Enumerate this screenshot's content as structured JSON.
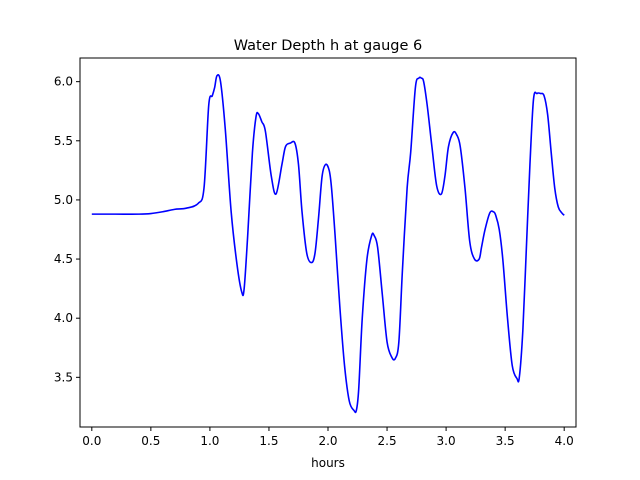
{
  "chart_data": {
    "type": "line",
    "title": "Water Depth h at gauge 6",
    "xlabel": "hours",
    "ylabel": "",
    "xlim": [
      -0.1,
      4.1
    ],
    "ylim": [
      3.08,
      6.2
    ],
    "grid": false,
    "legend": "none",
    "xticks": [
      0.0,
      0.5,
      1.0,
      1.5,
      2.0,
      2.5,
      3.0,
      3.5,
      4.0
    ],
    "xtick_labels": [
      "0.0",
      "0.5",
      "1.0",
      "1.5",
      "2.0",
      "2.5",
      "3.0",
      "3.5",
      "4.0"
    ],
    "yticks": [
      3.5,
      4.0,
      4.5,
      5.0,
      5.5,
      6.0
    ],
    "ytick_labels": [
      "3.5",
      "4.0",
      "4.5",
      "5.0",
      "5.5",
      "6.0"
    ],
    "series": [
      {
        "color": "#0000ff",
        "x": [
          0.0,
          0.2,
          0.4,
          0.5,
          0.6,
          0.7,
          0.8,
          0.9,
          0.95,
          0.99,
          1.02,
          1.04,
          1.06,
          1.09,
          1.13,
          1.18,
          1.23,
          1.27,
          1.29,
          1.32,
          1.36,
          1.39,
          1.41,
          1.44,
          1.47,
          1.52,
          1.56,
          1.61,
          1.64,
          1.68,
          1.72,
          1.75,
          1.78,
          1.82,
          1.86,
          1.89,
          1.92,
          1.95,
          1.98,
          2.01,
          2.03,
          2.06,
          2.1,
          2.14,
          2.18,
          2.22,
          2.24,
          2.26,
          2.29,
          2.33,
          2.37,
          2.39,
          2.42,
          2.46,
          2.5,
          2.54,
          2.57,
          2.6,
          2.63,
          2.67,
          2.7,
          2.74,
          2.77,
          2.79,
          2.81,
          2.84,
          2.88,
          2.92,
          2.96,
          2.99,
          3.02,
          3.06,
          3.09,
          3.12,
          3.16,
          3.2,
          3.24,
          3.28,
          3.3,
          3.33,
          3.37,
          3.4,
          3.42,
          3.45,
          3.48,
          3.52,
          3.56,
          3.6,
          3.62,
          3.65,
          3.68,
          3.71,
          3.74,
          3.77,
          3.8,
          3.83,
          3.86,
          3.89,
          3.92,
          3.95,
          3.98,
          4.0
        ],
        "y": [
          4.88,
          4.88,
          4.88,
          4.885,
          4.9,
          4.92,
          4.93,
          4.97,
          5.1,
          5.8,
          5.88,
          5.95,
          6.05,
          6.0,
          5.6,
          4.9,
          4.45,
          4.22,
          4.25,
          4.7,
          5.4,
          5.7,
          5.73,
          5.66,
          5.58,
          5.2,
          5.05,
          5.3,
          5.45,
          5.48,
          5.48,
          5.3,
          4.9,
          4.55,
          4.47,
          4.55,
          4.85,
          5.2,
          5.3,
          5.25,
          5.1,
          4.7,
          4.1,
          3.6,
          3.3,
          3.22,
          3.22,
          3.4,
          4.0,
          4.5,
          4.7,
          4.7,
          4.6,
          4.2,
          3.8,
          3.67,
          3.66,
          3.8,
          4.4,
          5.1,
          5.4,
          5.95,
          6.03,
          6.03,
          6.0,
          5.8,
          5.45,
          5.12,
          5.05,
          5.2,
          5.45,
          5.57,
          5.55,
          5.45,
          5.1,
          4.65,
          4.5,
          4.5,
          4.6,
          4.75,
          4.89,
          4.9,
          4.87,
          4.75,
          4.5,
          4.0,
          3.6,
          3.49,
          3.5,
          3.9,
          4.6,
          5.3,
          5.85,
          5.9,
          5.9,
          5.88,
          5.72,
          5.4,
          5.1,
          4.94,
          4.89,
          4.87
        ]
      }
    ]
  }
}
